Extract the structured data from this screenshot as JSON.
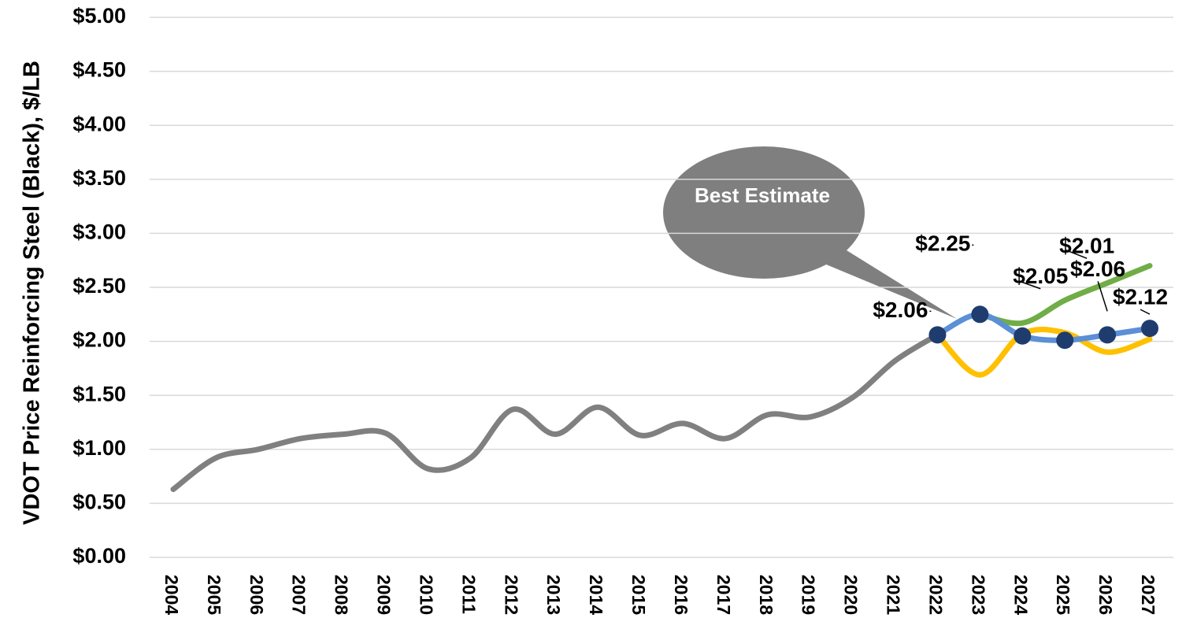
{
  "chart_data": {
    "type": "line",
    "y_label": "VDOT Price Reinforcing Steel (Black), $/LB",
    "annotation": "Best Estimate",
    "categories": [
      "2004",
      "2005",
      "2006",
      "2007",
      "2008",
      "2009",
      "2010",
      "2011",
      "2012",
      "2013",
      "2014",
      "2015",
      "2016",
      "2017",
      "2018",
      "2019",
      "2020",
      "2021",
      "2022",
      "2023",
      "2024",
      "2025",
      "2026",
      "2027"
    ],
    "series": [
      {
        "color": "#808080",
        "values": [
          0.63,
          0.92,
          1.0,
          1.1,
          1.14,
          1.15,
          0.82,
          0.92,
          1.37,
          1.14,
          1.39,
          1.13,
          1.24,
          1.1,
          1.32,
          1.3,
          1.48,
          1.82,
          2.06,
          null,
          null,
          null,
          null,
          null
        ]
      },
      {
        "color": "#70ad47",
        "values": [
          null,
          null,
          null,
          null,
          null,
          null,
          null,
          null,
          null,
          null,
          null,
          null,
          null,
          null,
          null,
          null,
          null,
          null,
          null,
          2.25,
          2.17,
          2.38,
          2.54,
          2.7
        ]
      },
      {
        "color": "#ffc000",
        "values": [
          null,
          null,
          null,
          null,
          null,
          null,
          null,
          null,
          null,
          null,
          null,
          null,
          null,
          null,
          null,
          null,
          null,
          null,
          2.06,
          1.69,
          2.07,
          2.08,
          1.9,
          2.02
        ]
      },
      {
        "color": "#5b8fd6",
        "marker_color": "#1f3c6e",
        "values": [
          null,
          null,
          null,
          null,
          null,
          null,
          null,
          null,
          null,
          null,
          null,
          null,
          null,
          null,
          null,
          null,
          null,
          null,
          2.06,
          2.25,
          2.05,
          2.01,
          2.06,
          2.12
        ],
        "value_labels": [
          null,
          null,
          null,
          null,
          null,
          null,
          null,
          null,
          null,
          null,
          null,
          null,
          null,
          null,
          null,
          null,
          null,
          null,
          "$2.06",
          "$2.25",
          "$2.05",
          "$2.01",
          "$2.06",
          "$2.12"
        ]
      }
    ],
    "ylim": [
      0,
      5
    ],
    "yticks": [
      {
        "value": 0,
        "label": "$0.00"
      },
      {
        "value": 0.5,
        "label": "$0.50"
      },
      {
        "value": 1,
        "label": "$1.00"
      },
      {
        "value": 1.5,
        "label": "$1.50"
      },
      {
        "value": 2,
        "label": "$2.00"
      },
      {
        "value": 2.5,
        "label": "$2.50"
      },
      {
        "value": 3,
        "label": "$3.00"
      },
      {
        "value": 3.5,
        "label": "$3.50"
      },
      {
        "value": 4,
        "label": "$4.00"
      },
      {
        "value": 4.5,
        "label": "$4.50"
      },
      {
        "value": 5,
        "label": "$5.00"
      }
    ],
    "grid": true
  }
}
